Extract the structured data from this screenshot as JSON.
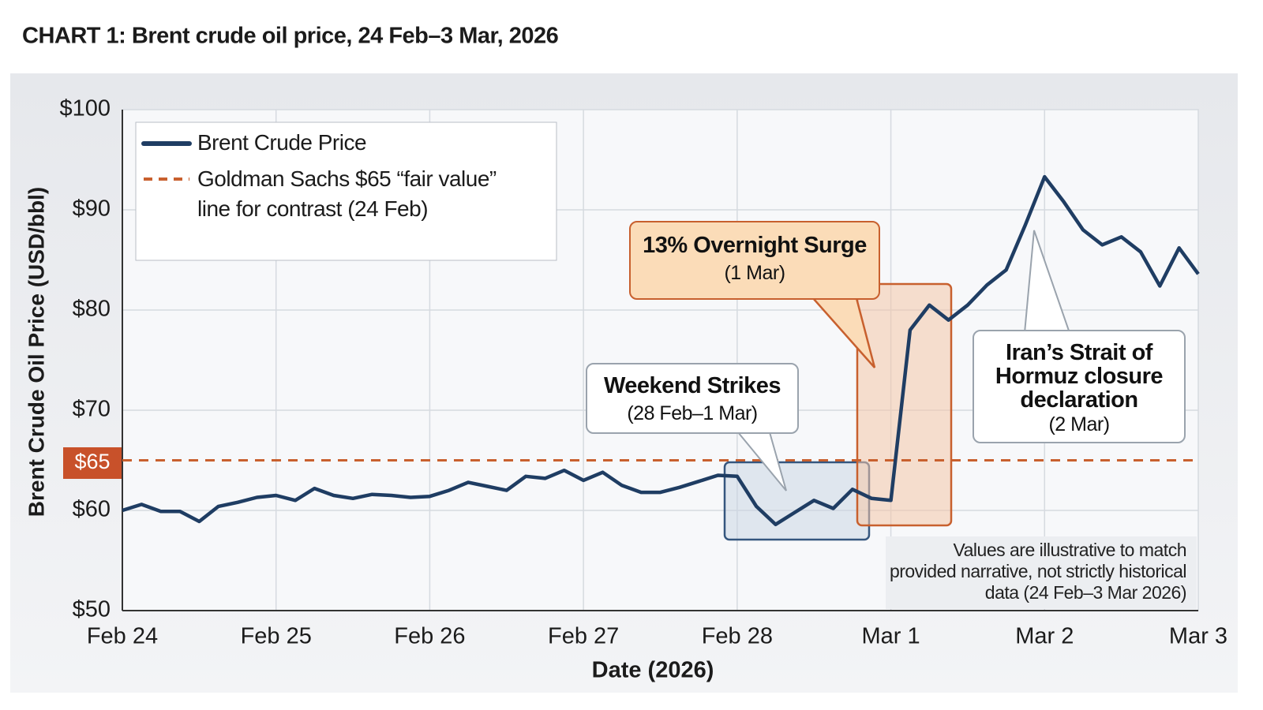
{
  "chart_data": {
    "type": "line",
    "title": "CHART 1: Brent crude oil price, 24 Feb–3 Mar, 2026",
    "x_label": "Date (2026)",
    "y_label": "Brent Crude Oil Price (USD/bbl)",
    "x": [
      0,
      0.125,
      0.25,
      0.375,
      0.5,
      0.625,
      0.75,
      0.875,
      1,
      1.125,
      1.25,
      1.375,
      1.5,
      1.625,
      1.75,
      1.875,
      2,
      2.125,
      2.25,
      2.375,
      2.5,
      2.625,
      2.75,
      2.875,
      3,
      3.125,
      3.25,
      3.375,
      3.5,
      3.625,
      3.75,
      3.875,
      4,
      4.125,
      4.25,
      4.375,
      4.5,
      4.625,
      4.75,
      4.875,
      5,
      5.125,
      5.25,
      5.375,
      5.5,
      5.625,
      5.75,
      5.875,
      6,
      6.125,
      6.25,
      6.375,
      6.5,
      6.625,
      6.75,
      6.875,
      7
    ],
    "series": [
      {
        "name": "Brent Crude Price",
        "color": "#1f3d63",
        "values": [
          60,
          60.6,
          59.9,
          59.9,
          58.9,
          60.4,
          60.8,
          61.3,
          61.5,
          61,
          62.2,
          61.5,
          61.2,
          61.6,
          61.5,
          61.3,
          61.4,
          62,
          62.8,
          62.4,
          62,
          63.4,
          63.2,
          64,
          63,
          63.8,
          62.5,
          61.8,
          61.8,
          62.3,
          62.9,
          63.5,
          63.4,
          60.4,
          58.6,
          59.8,
          61,
          60.2,
          62.1,
          61.2,
          61,
          78,
          80.5,
          79,
          80.5,
          82.5,
          84,
          88.5,
          93.3,
          90.8,
          88,
          86.5,
          87.3,
          85.8,
          82.4,
          86.2,
          83.6
        ]
      }
    ],
    "reference_lines": [
      {
        "name": "Goldman Sachs $65 “fair value” line for contrast (24 Feb)",
        "value": 65,
        "label": "$65",
        "color": "#c8602e"
      }
    ],
    "xlim": [
      0,
      7
    ],
    "xticks": [
      {
        "value": 0,
        "label": "Feb 24"
      },
      {
        "value": 1,
        "label": "Feb 25"
      },
      {
        "value": 2,
        "label": "Feb 26"
      },
      {
        "value": 3,
        "label": "Feb 27"
      },
      {
        "value": 4,
        "label": "Feb 28"
      },
      {
        "value": 5,
        "label": "Mar 1"
      },
      {
        "value": 6,
        "label": "Mar 2"
      },
      {
        "value": 7,
        "label": "Mar 3"
      }
    ],
    "ylim": [
      50,
      100
    ],
    "yticks": [
      {
        "value": 50,
        "label": "$50"
      },
      {
        "value": 60,
        "label": "$60"
      },
      {
        "value": 70,
        "label": "$70"
      },
      {
        "value": 80,
        "label": "$80"
      },
      {
        "value": 90,
        "label": "$90"
      },
      {
        "value": 100,
        "label": "$100"
      }
    ],
    "grid": true,
    "legend": "upper left",
    "annotations": [
      {
        "title": "13% Overnight Surge",
        "subtitle": "(1 Mar)"
      },
      {
        "title": "Weekend Strikes",
        "subtitle": "(28 Feb–1 Mar)"
      },
      {
        "title": "Iran’s Strait of Hormuz closure declaration",
        "subtitle": "(2 Mar)"
      }
    ],
    "note": "Values are illustrative to match provided narrative, not strictly historical data (24 Feb–3 Mar 2026)"
  }
}
